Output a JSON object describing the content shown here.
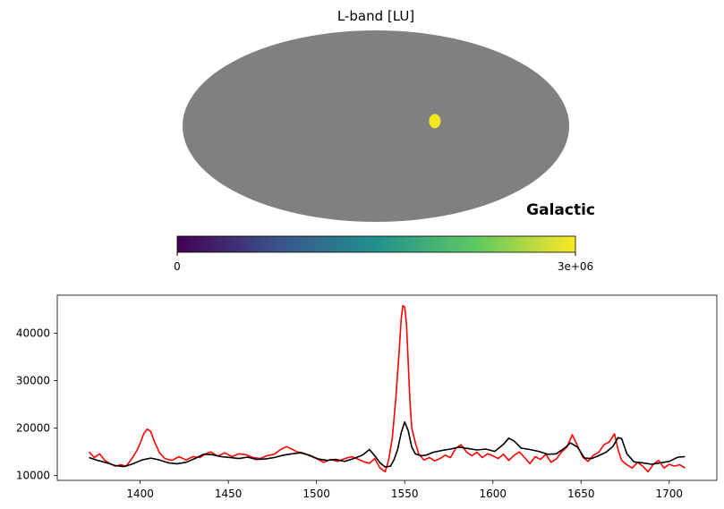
{
  "chart_data": [
    {
      "type": "heatmap",
      "title": "L-band [LU]",
      "projection": "mollweide",
      "coord_label": "Galactic",
      "background_color": "#808080",
      "hotspot": {
        "lon_deg": -55,
        "lat_deg": 3,
        "value": 3000000,
        "color": "#f4e61e"
      },
      "colorbar": {
        "cmap": "viridis",
        "stops": [
          "#440154",
          "#3b528b",
          "#21918c",
          "#5ec962",
          "#fde725"
        ],
        "min_label": "0",
        "max_label": "3e+06",
        "range": [
          0,
          3000000
        ]
      }
    },
    {
      "type": "line",
      "title": "",
      "xlabel": "",
      "ylabel": "",
      "xlim": [
        1353,
        1727
      ],
      "ylim": [
        9000,
        48000
      ],
      "xticks": [
        1400,
        1450,
        1500,
        1550,
        1600,
        1650,
        1700
      ],
      "yticks": [
        10000,
        20000,
        30000,
        40000
      ],
      "grid": false,
      "series": [
        {
          "color": "#ff0000",
          "x": [
            1371,
            1374,
            1377,
            1380,
            1383,
            1386,
            1389,
            1392,
            1395,
            1398,
            1400,
            1402,
            1404,
            1406,
            1408,
            1411,
            1414,
            1418,
            1422,
            1426,
            1430,
            1434,
            1437,
            1440,
            1444,
            1448,
            1452,
            1456,
            1460,
            1464,
            1468,
            1472,
            1476,
            1480,
            1483,
            1486,
            1489,
            1492,
            1496,
            1500,
            1504,
            1508,
            1512,
            1516,
            1520,
            1524,
            1527,
            1530,
            1533,
            1536,
            1539,
            1541,
            1543,
            1545,
            1547,
            1548,
            1549,
            1550,
            1551,
            1552,
            1553,
            1554,
            1556,
            1558,
            1561,
            1564,
            1567,
            1570,
            1573,
            1576,
            1579,
            1582,
            1585,
            1588,
            1591,
            1594,
            1597,
            1600,
            1603,
            1606,
            1609,
            1612,
            1615,
            1618,
            1621,
            1624,
            1627,
            1630,
            1633,
            1636,
            1639,
            1642,
            1645,
            1648,
            1651,
            1654,
            1657,
            1660,
            1663,
            1666,
            1669,
            1671,
            1673,
            1676,
            1679,
            1682,
            1685,
            1688,
            1691,
            1694,
            1697,
            1700,
            1703,
            1706,
            1709
          ],
          "y": [
            15000,
            13800,
            14600,
            13200,
            12500,
            12000,
            12300,
            12000,
            13400,
            15200,
            16800,
            18800,
            19800,
            19300,
            17200,
            14800,
            13600,
            13200,
            14000,
            13300,
            14000,
            13800,
            14600,
            15000,
            14100,
            14800,
            14000,
            14600,
            14400,
            13800,
            13600,
            14200,
            14500,
            15600,
            16100,
            15600,
            15000,
            14800,
            14200,
            13600,
            12800,
            13400,
            13000,
            13600,
            14000,
            13400,
            12900,
            12600,
            13600,
            11600,
            10800,
            13500,
            18000,
            26500,
            37000,
            43000,
            45800,
            45500,
            42000,
            34000,
            25500,
            20000,
            17000,
            14500,
            13300,
            13800,
            13100,
            13600,
            14300,
            13800,
            15800,
            16500,
            15000,
            14200,
            14900,
            13800,
            14600,
            14200,
            13600,
            14500,
            13200,
            14300,
            15000,
            13800,
            12500,
            14000,
            13400,
            14500,
            12800,
            13500,
            15000,
            16000,
            18600,
            16300,
            13900,
            13000,
            14300,
            14900,
            16500,
            17100,
            18800,
            15500,
            13200,
            12300,
            11600,
            12800,
            12000,
            10800,
            12400,
            13200,
            11600,
            12400,
            12000,
            12300,
            11600
          ],
          "stroke": "#ff0000"
        },
        {
          "color": "#000000",
          "x": [
            1371,
            1376,
            1381,
            1386,
            1391,
            1396,
            1401,
            1406,
            1411,
            1416,
            1421,
            1426,
            1431,
            1436,
            1441,
            1446,
            1451,
            1456,
            1461,
            1466,
            1471,
            1476,
            1481,
            1486,
            1491,
            1496,
            1501,
            1506,
            1511,
            1516,
            1521,
            1526,
            1530,
            1533,
            1536,
            1539,
            1542,
            1544,
            1546,
            1548,
            1550,
            1552,
            1554,
            1556,
            1559,
            1562,
            1566,
            1571,
            1576,
            1581,
            1586,
            1591,
            1596,
            1601,
            1606,
            1609,
            1612,
            1616,
            1621,
            1626,
            1631,
            1636,
            1641,
            1644,
            1648,
            1652,
            1656,
            1660,
            1664,
            1668,
            1671,
            1673,
            1676,
            1680,
            1685,
            1690,
            1695,
            1700,
            1705,
            1709
          ],
          "y": [
            13800,
            13200,
            12700,
            12100,
            11900,
            12500,
            13300,
            13700,
            13300,
            12700,
            12500,
            12800,
            13600,
            14500,
            14400,
            14000,
            13800,
            13600,
            13900,
            13400,
            13500,
            13800,
            14300,
            14600,
            14800,
            14300,
            13500,
            13200,
            13400,
            13000,
            13600,
            14300,
            15500,
            14200,
            12700,
            11800,
            12000,
            13400,
            15500,
            19000,
            21300,
            19500,
            16000,
            14600,
            14200,
            14300,
            14900,
            15300,
            15600,
            16000,
            15700,
            15400,
            15600,
            15100,
            16600,
            17900,
            17300,
            15800,
            15500,
            15100,
            14500,
            14600,
            15900,
            16900,
            16000,
            13700,
            13600,
            14200,
            14900,
            16100,
            18000,
            17800,
            14600,
            12900,
            12700,
            12400,
            12700,
            13000,
            13900,
            14000
          ],
          "stroke": "#000000"
        }
      ]
    }
  ]
}
